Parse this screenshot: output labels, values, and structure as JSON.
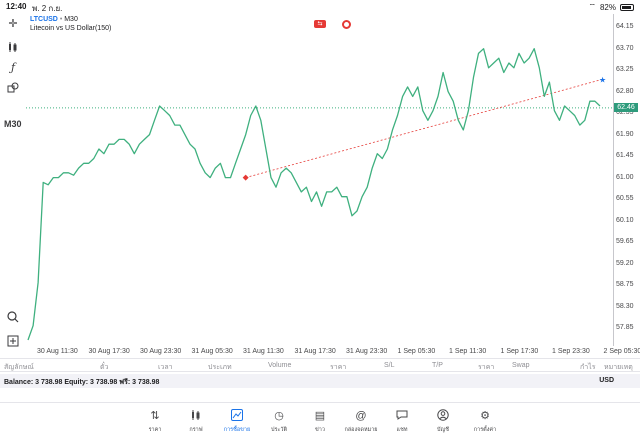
{
  "status": {
    "time": "12:40",
    "date": "พ. 2 ก.ย.",
    "battery": "82%"
  },
  "toolbar": {
    "timeframe": "M30"
  },
  "chart_header": {
    "symbol": "LTCUSD",
    "timeframe": "M30",
    "description": "Litecoin vs US Dollar(150)"
  },
  "chart_data": {
    "type": "line",
    "series": [
      {
        "values": [
          57.6,
          57.9,
          58.8,
          60.9,
          60.85,
          61.0,
          61.0,
          61.1,
          61.1,
          61.05,
          61.2,
          61.3,
          61.3,
          61.4,
          61.6,
          61.5,
          61.7,
          61.7,
          61.8,
          61.8,
          61.7,
          61.5,
          61.7,
          61.8,
          61.9,
          62.2,
          62.5,
          62.4,
          62.3,
          62.1,
          62.1,
          61.9,
          61.7,
          61.6,
          61.3,
          61.1,
          61.0,
          61.2,
          61.3,
          61.0,
          61.0,
          61.3,
          61.6,
          61.9,
          62.3,
          62.5,
          62.2,
          61.6,
          61.0,
          60.8,
          61.1,
          61.2,
          61.1,
          60.9,
          60.7,
          60.8,
          60.5,
          60.7,
          60.4,
          60.7,
          60.7,
          60.8,
          60.6,
          60.6,
          60.2,
          60.3,
          60.6,
          60.8,
          61.2,
          61.5,
          61.4,
          61.6,
          62.0,
          62.3,
          62.7,
          62.9,
          62.7,
          62.9,
          62.4,
          62.2,
          62.4,
          62.7,
          63.2,
          62.8,
          62.6,
          62.2,
          62.0,
          62.4,
          63.1,
          63.6,
          63.7,
          63.3,
          63.4,
          63.5,
          63.2,
          63.4,
          63.3,
          63.6,
          63.4,
          63.5,
          63.7,
          63.3,
          62.7,
          63.0,
          62.4,
          62.2,
          62.5,
          62.4,
          62.3,
          62.1,
          62.2,
          62.6,
          62.6,
          62.5
        ]
      }
    ],
    "ylim": [
      57.6,
      64.3
    ],
    "price_ticks": [
      "64.15",
      "63.70",
      "63.25",
      "62.80",
      "62.35",
      "61.90",
      "61.45",
      "61.00",
      "60.55",
      "60.10",
      "59.65",
      "59.20",
      "58.75",
      "58.30",
      "57.85"
    ],
    "time_ticks": [
      "30 Aug 11:30",
      "30 Aug 17:30",
      "30 Aug 23:30",
      "31 Aug 05:30",
      "31 Aug 11:30",
      "31 Aug 17:30",
      "31 Aug 23:30",
      "1 Sep 05:30",
      "1 Sep 11:30",
      "1 Sep 17:30",
      "1 Sep 23:30",
      "2 Sep 05:30"
    ],
    "current_price": "62.46",
    "current_value": 62.46,
    "line_color": "#3fb07f",
    "trend_color": "#e53935"
  },
  "table_headers": [
    "สัญลักษณ์",
    "ตั๋ว",
    "เวลา",
    "ประเภท",
    "Volume",
    "ราคา",
    "S/L",
    "T/P",
    "ราคา",
    "Swap",
    "กำไร",
    "หมายเหตุ"
  ],
  "balance": {
    "text": "Balance: 3 738.98 Equity: 3 738.98 ฟรี: 3 738.98",
    "currency": "USD"
  },
  "tabs": [
    {
      "label": "ราคา",
      "icon": "up-down-arrows-icon"
    },
    {
      "label": "กราฟ",
      "icon": "candlestick-icon"
    },
    {
      "label": "การซื้อขาย",
      "icon": "trade-chart-icon",
      "active": true
    },
    {
      "label": "ประวัติ",
      "icon": "history-icon"
    },
    {
      "label": "ข่าว",
      "icon": "news-icon"
    },
    {
      "label": "กล่องจดหมาย",
      "icon": "mailbox-icon"
    },
    {
      "label": "แชท",
      "icon": "chat-icon"
    },
    {
      "label": "บัญชี",
      "icon": "account-icon"
    },
    {
      "label": "การตั้งค่า",
      "icon": "settings-icon"
    }
  ]
}
